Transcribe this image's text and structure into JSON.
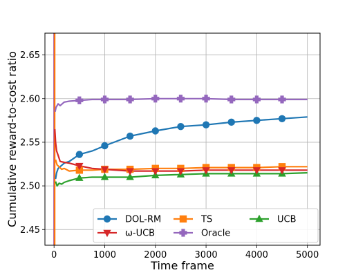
{
  "chart_data": {
    "type": "line",
    "title": "",
    "xlabel": "Time frame",
    "ylabel": "Cumulative reward-to-cost ratio",
    "xlim": [
      -180,
      5250
    ],
    "ylim": [
      2.432,
      2.675
    ],
    "xticks": [
      0,
      1000,
      2000,
      3000,
      4000,
      5000
    ],
    "xtick_labels": [
      "0",
      "1000",
      "2000",
      "3000",
      "4000",
      "5000"
    ],
    "yticks": [
      2.45,
      2.5,
      2.55,
      2.6,
      2.65
    ],
    "ytick_labels": [
      "2.45",
      "2.50",
      "2.55",
      "2.60",
      "2.65"
    ],
    "grid": true,
    "legend": {
      "placement": "lower-right",
      "columns": 3
    },
    "series": [
      {
        "name": "DOL-RM",
        "color": "#1f77b4",
        "marker": "circle",
        "x": [
          30,
          50,
          80,
          120,
          200,
          300,
          500,
          750,
          1000,
          1500,
          2000,
          2500,
          3000,
          3500,
          4000,
          4500,
          5000
        ],
        "y": [
          2.508,
          2.515,
          2.52,
          2.522,
          2.526,
          2.528,
          2.536,
          2.54,
          2.546,
          2.557,
          2.563,
          2.568,
          2.57,
          2.573,
          2.575,
          2.577,
          2.579
        ]
      },
      {
        "name": "TS",
        "color": "#ff7f0e",
        "marker": "square",
        "x": [
          30,
          60,
          100,
          150,
          200,
          300,
          500,
          750,
          1000,
          1500,
          2000,
          2500,
          3000,
          3500,
          4000,
          4500,
          5000
        ],
        "y": [
          2.53,
          2.524,
          2.522,
          2.519,
          2.52,
          2.517,
          2.518,
          2.518,
          2.519,
          2.519,
          2.52,
          2.52,
          2.521,
          2.521,
          2.521,
          2.522,
          2.522
        ]
      },
      {
        "name": "UCB",
        "color": "#2ca02c",
        "marker": "triangle-up",
        "x": [
          30,
          60,
          100,
          150,
          200,
          300,
          500,
          750,
          1000,
          1500,
          2000,
          2500,
          3000,
          3500,
          4000,
          4500,
          5000
        ],
        "y": [
          2.505,
          2.5,
          2.503,
          2.502,
          2.504,
          2.506,
          2.509,
          2.51,
          2.51,
          2.51,
          2.512,
          2.513,
          2.514,
          2.514,
          2.514,
          2.514,
          2.515
        ]
      },
      {
        "name": "ω-UCB",
        "color": "#d62728",
        "marker": "triangle-down",
        "x": [
          15,
          30,
          50,
          80,
          120,
          200,
          300,
          500,
          750,
          1000,
          1500,
          2000,
          2500,
          3000,
          3500,
          4000,
          4500,
          5000
        ],
        "y": [
          2.565,
          2.55,
          2.54,
          2.535,
          2.528,
          2.527,
          2.526,
          2.523,
          2.52,
          2.519,
          2.517,
          2.517,
          2.517,
          2.518,
          2.518,
          2.518,
          2.518,
          2.518
        ]
      },
      {
        "name": "Oracle",
        "color": "#9467bd",
        "marker": "plus",
        "x": [
          20,
          40,
          80,
          120,
          200,
          300,
          500,
          750,
          1000,
          1500,
          2000,
          2500,
          3000,
          3500,
          4000,
          4500,
          5000
        ],
        "y": [
          2.585,
          2.59,
          2.594,
          2.592,
          2.596,
          2.597,
          2.598,
          2.599,
          2.599,
          2.599,
          2.6,
          2.6,
          2.6,
          2.599,
          2.599,
          2.599,
          2.599
        ]
      }
    ]
  }
}
